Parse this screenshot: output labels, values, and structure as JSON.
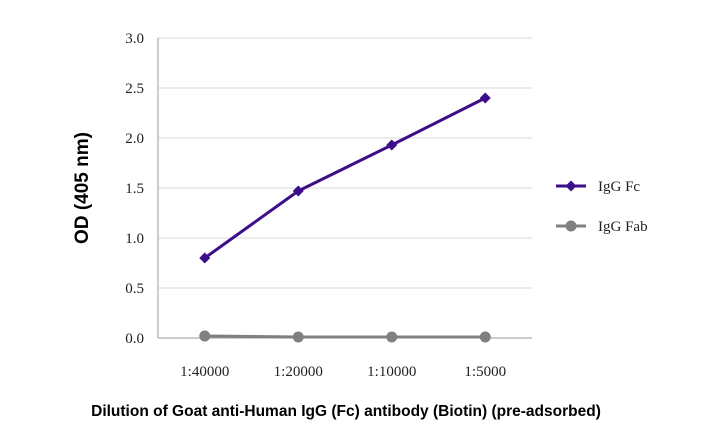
{
  "chart_data": {
    "type": "line",
    "title": "",
    "xlabel": "Dilution of Goat anti-Human IgG (Fc) antibody (Biotin) (pre-adsorbed)",
    "ylabel": "OD (405 nm)",
    "categories": [
      "1:40000",
      "1:20000",
      "1:10000",
      "1:5000"
    ],
    "ylim": [
      0,
      3.0
    ],
    "yticks": [
      "0.0",
      "0.5",
      "1.0",
      "1.5",
      "2.0",
      "2.5",
      "3.0"
    ],
    "grid": true,
    "legend": "right",
    "series": [
      {
        "name": "IgG Fc",
        "values": [
          0.8,
          1.47,
          1.93,
          2.4
        ],
        "color": "#3d0e8a",
        "marker": "diamond"
      },
      {
        "name": "IgG Fab",
        "values": [
          0.02,
          0.01,
          0.01,
          0.01
        ],
        "color": "#808080",
        "marker": "circle"
      }
    ]
  }
}
